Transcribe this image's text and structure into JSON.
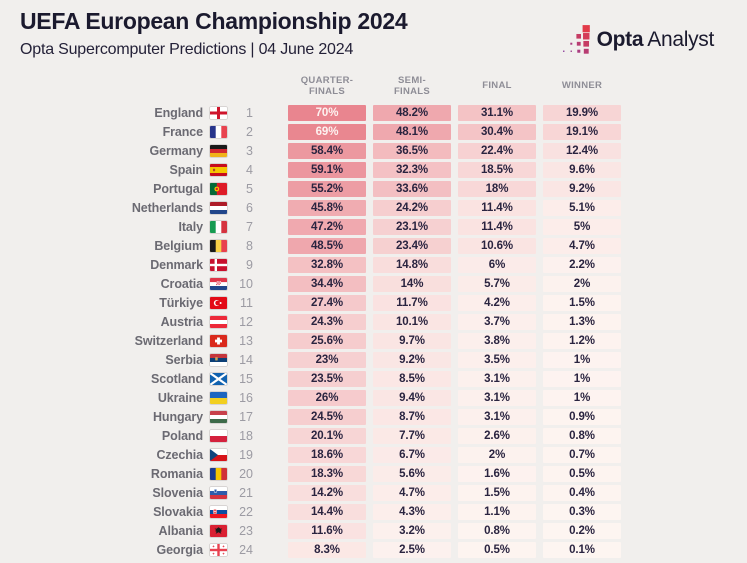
{
  "header": {
    "title": "UEFA European Championship 2024",
    "subtitle": "Opta Supercomputer Predictions | 04 June 2024"
  },
  "logo": {
    "brand_bold": "Opta",
    "brand_regular": "Analyst"
  },
  "table": {
    "columns": [
      "QUARTER-FINALS",
      "SEMI-FINALS",
      "FINAL",
      "WINNER"
    ],
    "rows": [
      {
        "team": "England",
        "flag": "england",
        "rank": "1",
        "values": [
          "70%",
          "48.2%",
          "31.1%",
          "19.9%"
        ]
      },
      {
        "team": "France",
        "flag": "france",
        "rank": "2",
        "values": [
          "69%",
          "48.1%",
          "30.4%",
          "19.1%"
        ]
      },
      {
        "team": "Germany",
        "flag": "germany",
        "rank": "3",
        "values": [
          "58.4%",
          "36.5%",
          "22.4%",
          "12.4%"
        ]
      },
      {
        "team": "Spain",
        "flag": "spain",
        "rank": "4",
        "values": [
          "59.1%",
          "32.3%",
          "18.5%",
          "9.6%"
        ]
      },
      {
        "team": "Portugal",
        "flag": "portugal",
        "rank": "5",
        "values": [
          "55.2%",
          "33.6%",
          "18%",
          "9.2%"
        ]
      },
      {
        "team": "Netherlands",
        "flag": "netherlands",
        "rank": "6",
        "values": [
          "45.8%",
          "24.2%",
          "11.4%",
          "5.1%"
        ]
      },
      {
        "team": "Italy",
        "flag": "italy",
        "rank": "7",
        "values": [
          "47.2%",
          "23.1%",
          "11.4%",
          "5%"
        ]
      },
      {
        "team": "Belgium",
        "flag": "belgium",
        "rank": "8",
        "values": [
          "48.5%",
          "23.4%",
          "10.6%",
          "4.7%"
        ]
      },
      {
        "team": "Denmark",
        "flag": "denmark",
        "rank": "9",
        "values": [
          "32.8%",
          "14.8%",
          "6%",
          "2.2%"
        ]
      },
      {
        "team": "Croatia",
        "flag": "croatia",
        "rank": "10",
        "values": [
          "34.4%",
          "14%",
          "5.7%",
          "2%"
        ]
      },
      {
        "team": "Türkiye",
        "flag": "turkiye",
        "rank": "11",
        "values": [
          "27.4%",
          "11.7%",
          "4.2%",
          "1.5%"
        ]
      },
      {
        "team": "Austria",
        "flag": "austria",
        "rank": "12",
        "values": [
          "24.3%",
          "10.1%",
          "3.7%",
          "1.3%"
        ]
      },
      {
        "team": "Switzerland",
        "flag": "switzerland",
        "rank": "13",
        "values": [
          "25.6%",
          "9.7%",
          "3.8%",
          "1.2%"
        ]
      },
      {
        "team": "Serbia",
        "flag": "serbia",
        "rank": "14",
        "values": [
          "23%",
          "9.2%",
          "3.5%",
          "1%"
        ]
      },
      {
        "team": "Scotland",
        "flag": "scotland",
        "rank": "15",
        "values": [
          "23.5%",
          "8.5%",
          "3.1%",
          "1%"
        ]
      },
      {
        "team": "Ukraine",
        "flag": "ukraine",
        "rank": "16",
        "values": [
          "26%",
          "9.4%",
          "3.1%",
          "1%"
        ]
      },
      {
        "team": "Hungary",
        "flag": "hungary",
        "rank": "17",
        "values": [
          "24.5%",
          "8.7%",
          "3.1%",
          "0.9%"
        ]
      },
      {
        "team": "Poland",
        "flag": "poland",
        "rank": "18",
        "values": [
          "20.1%",
          "7.7%",
          "2.6%",
          "0.8%"
        ]
      },
      {
        "team": "Czechia",
        "flag": "czechia",
        "rank": "19",
        "values": [
          "18.6%",
          "6.7%",
          "2%",
          "0.7%"
        ]
      },
      {
        "team": "Romania",
        "flag": "romania",
        "rank": "20",
        "values": [
          "18.3%",
          "5.6%",
          "1.6%",
          "0.5%"
        ]
      },
      {
        "team": "Slovenia",
        "flag": "slovenia",
        "rank": "21",
        "values": [
          "14.2%",
          "4.7%",
          "1.5%",
          "0.4%"
        ]
      },
      {
        "team": "Slovakia",
        "flag": "slovakia",
        "rank": "22",
        "values": [
          "14.4%",
          "4.3%",
          "1.1%",
          "0.3%"
        ]
      },
      {
        "team": "Albania",
        "flag": "albania",
        "rank": "23",
        "values": [
          "11.6%",
          "3.2%",
          "0.8%",
          "0.2%"
        ]
      },
      {
        "team": "Georgia",
        "flag": "georgia",
        "rank": "24",
        "values": [
          "8.3%",
          "2.5%",
          "0.5%",
          "0.1%"
        ]
      }
    ]
  },
  "colors": {
    "heat_low": "#fdf5f1",
    "heat_high": "#e9858f",
    "heat_text_dark": "#2a2440",
    "heat_text_light": "#fdf2f0",
    "accent_red": "#e23b49",
    "accent_purple": "#8d3d9b"
  },
  "chart_data": {
    "type": "heatmap",
    "title": "UEFA European Championship 2024",
    "subtitle": "Opta Supercomputer Predictions | 04 June 2024",
    "unit": "%",
    "columns": [
      "Quarter-finals",
      "Semi-finals",
      "Final",
      "Winner"
    ],
    "teams": [
      "England",
      "France",
      "Germany",
      "Spain",
      "Portugal",
      "Netherlands",
      "Italy",
      "Belgium",
      "Denmark",
      "Croatia",
      "Türkiye",
      "Austria",
      "Switzerland",
      "Serbia",
      "Scotland",
      "Ukraine",
      "Hungary",
      "Poland",
      "Czechia",
      "Romania",
      "Slovenia",
      "Slovakia",
      "Albania",
      "Georgia"
    ],
    "ranks": [
      1,
      2,
      3,
      4,
      5,
      6,
      7,
      8,
      9,
      10,
      11,
      12,
      13,
      14,
      15,
      16,
      17,
      18,
      19,
      20,
      21,
      22,
      23,
      24
    ],
    "values": [
      [
        70,
        48.2,
        31.1,
        19.9
      ],
      [
        69,
        48.1,
        30.4,
        19.1
      ],
      [
        58.4,
        36.5,
        22.4,
        12.4
      ],
      [
        59.1,
        32.3,
        18.5,
        9.6
      ],
      [
        55.2,
        33.6,
        18,
        9.2
      ],
      [
        45.8,
        24.2,
        11.4,
        5.1
      ],
      [
        47.2,
        23.1,
        11.4,
        5
      ],
      [
        48.5,
        23.4,
        10.6,
        4.7
      ],
      [
        32.8,
        14.8,
        6,
        2.2
      ],
      [
        34.4,
        14,
        5.7,
        2
      ],
      [
        27.4,
        11.7,
        4.2,
        1.5
      ],
      [
        24.3,
        10.1,
        3.7,
        1.3
      ],
      [
        25.6,
        9.7,
        3.8,
        1.2
      ],
      [
        23,
        9.2,
        3.5,
        1
      ],
      [
        23.5,
        8.5,
        3.1,
        1
      ],
      [
        26,
        9.4,
        3.1,
        1
      ],
      [
        24.5,
        8.7,
        3.1,
        0.9
      ],
      [
        20.1,
        7.7,
        2.6,
        0.8
      ],
      [
        18.6,
        6.7,
        2,
        0.7
      ],
      [
        18.3,
        5.6,
        1.6,
        0.5
      ],
      [
        14.2,
        4.7,
        1.5,
        0.4
      ],
      [
        14.4,
        4.3,
        1.1,
        0.3
      ],
      [
        11.6,
        3.2,
        0.8,
        0.2
      ],
      [
        8.3,
        2.5,
        0.5,
        0.1
      ]
    ],
    "color_scale": {
      "domain": [
        0,
        70
      ],
      "low": "#fdf5f1",
      "high": "#e9858f"
    },
    "legend_position": "none",
    "grid": false
  }
}
